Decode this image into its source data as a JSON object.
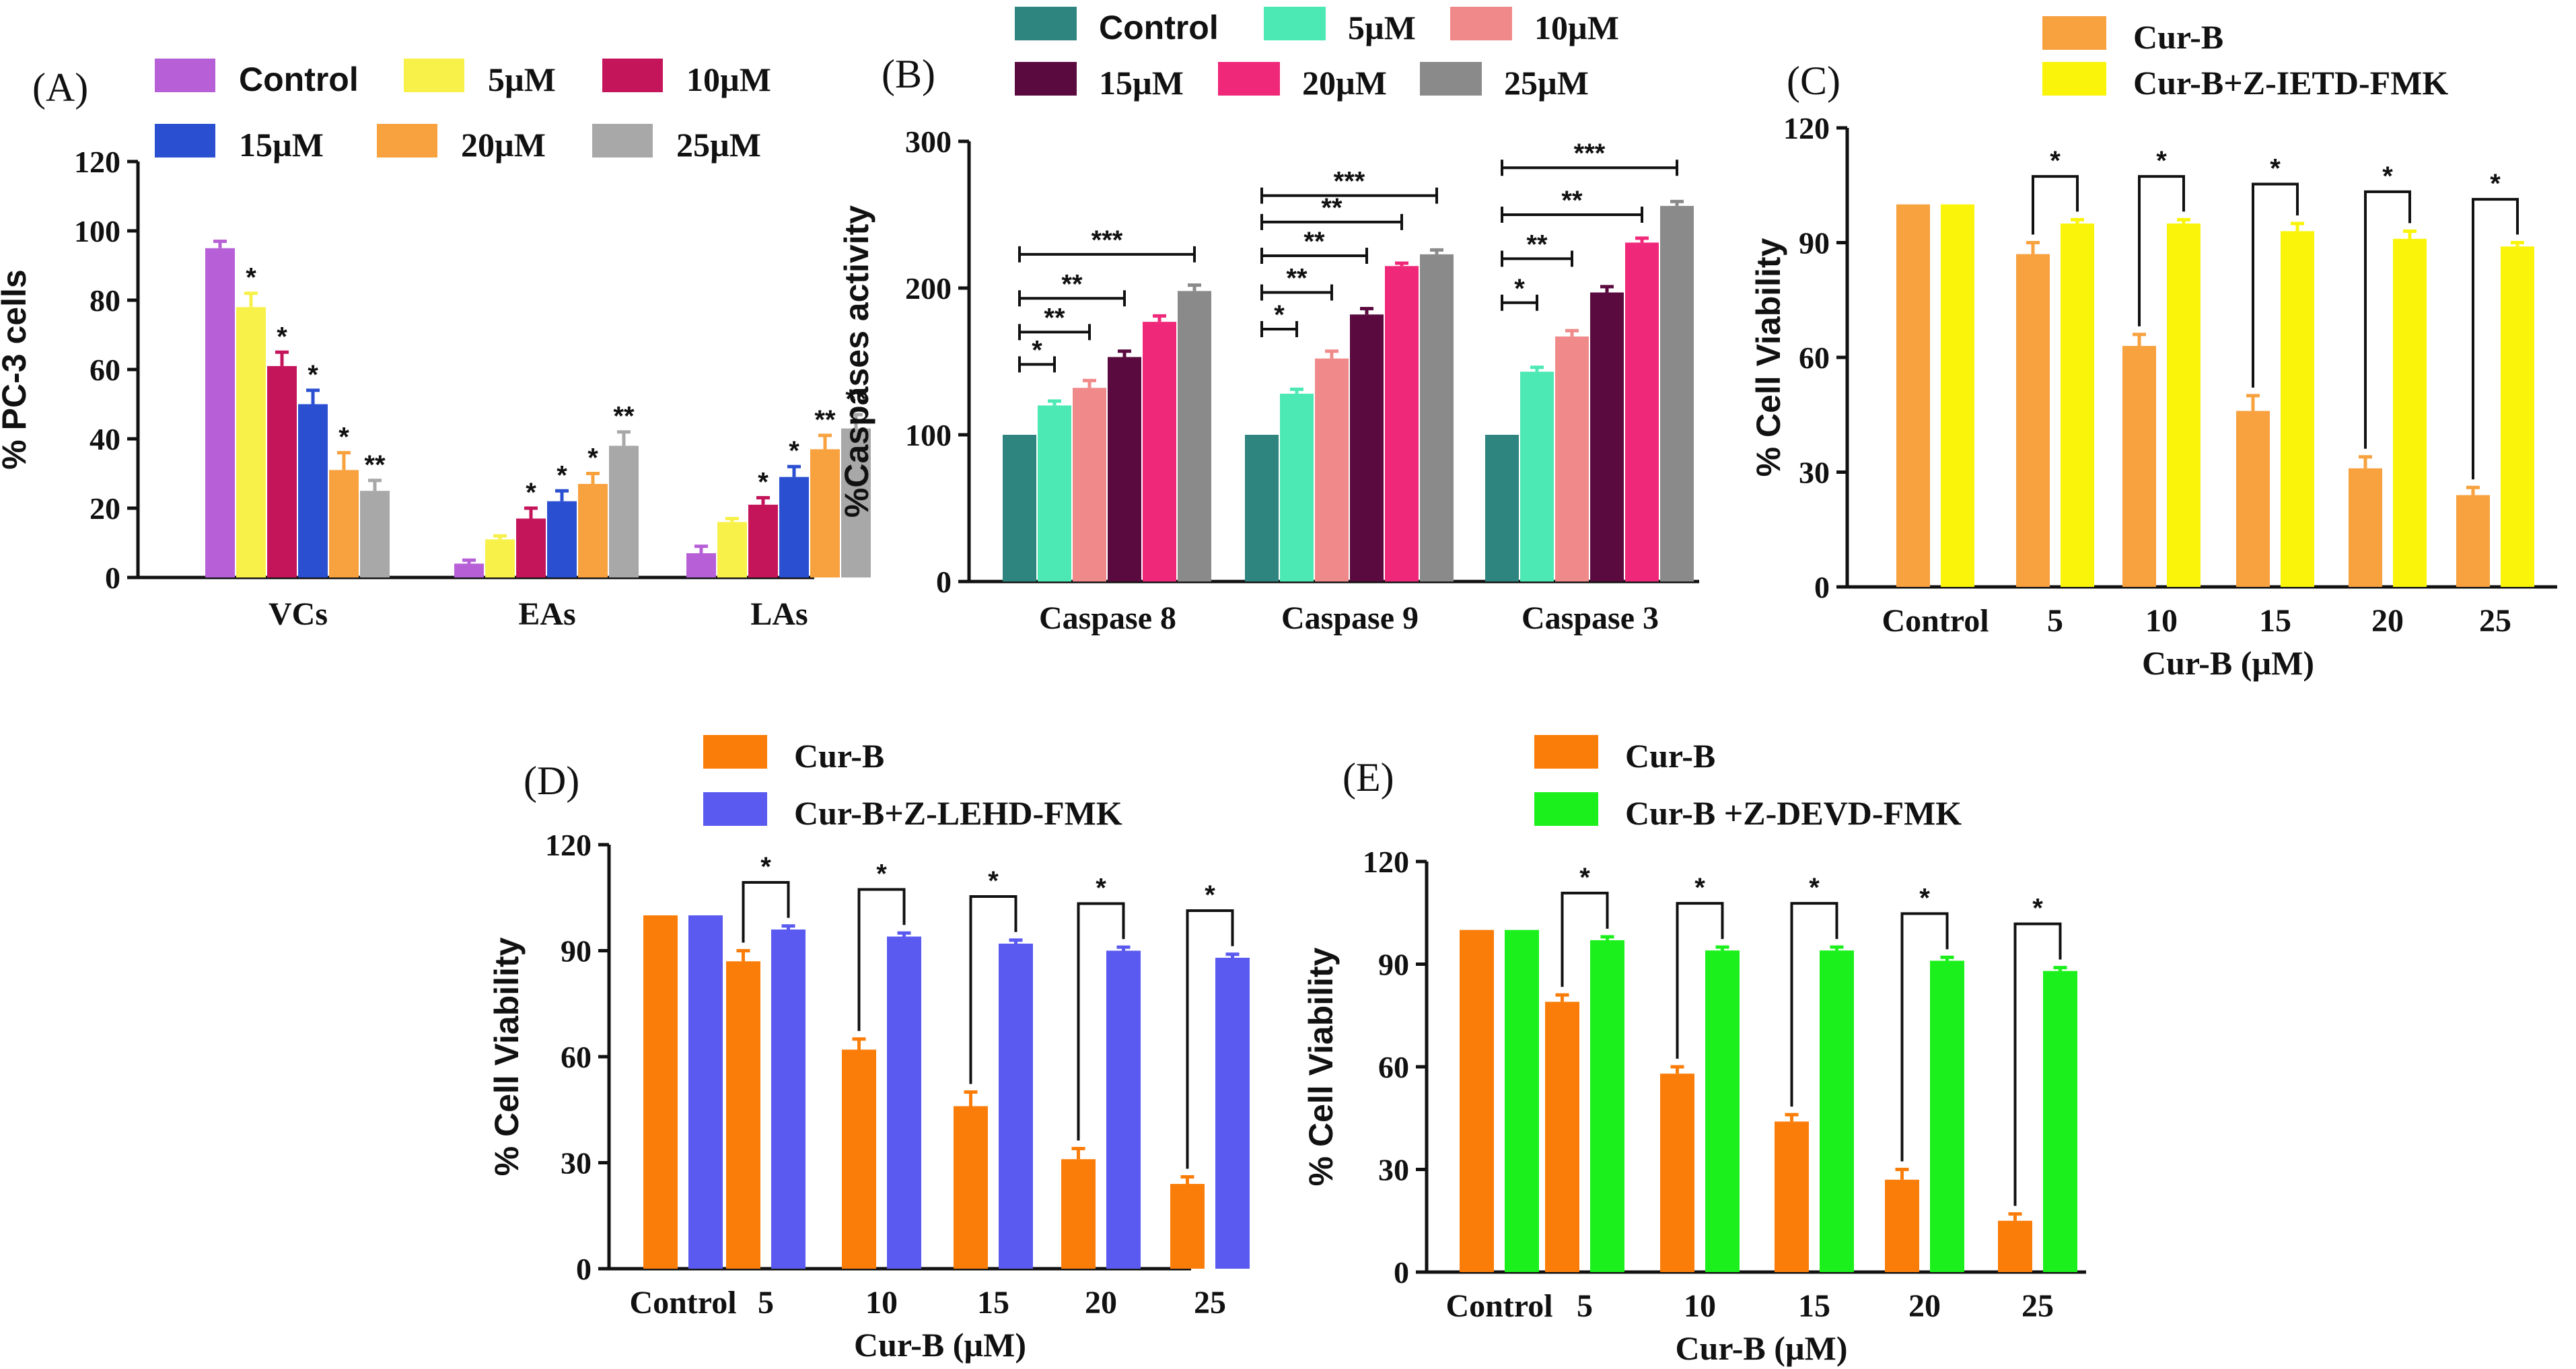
{
  "chart_data": [
    {
      "id": "A",
      "letter": "(A)",
      "type": "bar",
      "title": "",
      "xlabel": "",
      "ylabel": "% PC-3 cells",
      "ylim": [
        0,
        120
      ],
      "yticks": [
        0,
        20,
        40,
        60,
        80,
        100,
        120
      ],
      "categories": [
        "VCs",
        "EAs",
        "LAs"
      ],
      "legend": [
        "Control",
        "5µM",
        "10µM",
        "15µM",
        "20µM",
        "25µM"
      ],
      "colors": [
        "#b65fd6",
        "#f7f14a",
        "#c4145a",
        "#2a4fd0",
        "#f7a13f",
        "#a8a8a8"
      ],
      "series": [
        {
          "name": "Control",
          "values": [
            95,
            4,
            7
          ],
          "errors": [
            2,
            1,
            2
          ],
          "stars": [
            "",
            "",
            ""
          ]
        },
        {
          "name": "5µM",
          "values": [
            78,
            11,
            16
          ],
          "errors": [
            4,
            1,
            1
          ],
          "stars": [
            "*",
            "",
            ""
          ]
        },
        {
          "name": "10µM",
          "values": [
            61,
            17,
            21
          ],
          "errors": [
            4,
            3,
            2
          ],
          "stars": [
            "*",
            "*",
            "*"
          ]
        },
        {
          "name": "15µM",
          "values": [
            50,
            22,
            29
          ],
          "errors": [
            4,
            3,
            3
          ],
          "stars": [
            "*",
            "*",
            "*"
          ]
        },
        {
          "name": "20µM",
          "values": [
            31,
            27,
            37
          ],
          "errors": [
            5,
            3,
            4
          ],
          "stars": [
            "*",
            "*",
            "**"
          ]
        },
        {
          "name": "25µM",
          "values": [
            25,
            38,
            43
          ],
          "errors": [
            3,
            4,
            4
          ],
          "stars": [
            "**",
            "**",
            "**"
          ]
        }
      ]
    },
    {
      "id": "B",
      "letter": "(B)",
      "type": "bar",
      "title": "",
      "xlabel": "",
      "ylabel": "%Caspases activity",
      "ylim": [
        0,
        300
      ],
      "yticks": [
        0,
        100,
        200,
        300
      ],
      "categories": [
        "Caspase 8",
        "Caspase 9",
        "Caspase 3"
      ],
      "legend": [
        "Control",
        "5µM",
        "10µM",
        "15µM",
        "20µM",
        "25µM"
      ],
      "colors": [
        "#2e847e",
        "#4de9b5",
        "#f08a8a",
        "#5a0a3e",
        "#f0287a",
        "#8a8a8a"
      ],
      "series": [
        {
          "name": "Control",
          "values": [
            100,
            100,
            100
          ],
          "errors": [
            0,
            0,
            0
          ]
        },
        {
          "name": "5µM",
          "values": [
            120,
            128,
            143
          ],
          "errors": [
            3,
            3,
            3
          ]
        },
        {
          "name": "10µM",
          "values": [
            132,
            152,
            167
          ],
          "errors": [
            5,
            5,
            4
          ]
        },
        {
          "name": "15µM",
          "values": [
            153,
            182,
            197
          ],
          "errors": [
            4,
            4,
            4
          ]
        },
        {
          "name": "20µM",
          "values": [
            177,
            215,
            231
          ],
          "errors": [
            4,
            2,
            3
          ]
        },
        {
          "name": "25µM",
          "values": [
            198,
            223,
            256
          ],
          "errors": [
            4,
            3,
            3
          ]
        }
      ],
      "brackets": [
        {
          "group": 0,
          "to": 1,
          "level": 148,
          "label": "*"
        },
        {
          "group": 0,
          "to": 2,
          "level": 170,
          "label": "**"
        },
        {
          "group": 0,
          "to": 3,
          "level": 193,
          "label": "**"
        },
        {
          "group": 0,
          "to": 5,
          "level": 223,
          "label": "***"
        },
        {
          "group": 1,
          "to": 1,
          "level": 172,
          "label": "*"
        },
        {
          "group": 1,
          "to": 2,
          "level": 197,
          "label": "**"
        },
        {
          "group": 1,
          "to": 3,
          "level": 222,
          "label": "**"
        },
        {
          "group": 1,
          "to": 4,
          "level": 245,
          "label": "**"
        },
        {
          "group": 1,
          "to": 5,
          "level": 263,
          "label": "***"
        },
        {
          "group": 2,
          "to": 1,
          "level": 190,
          "label": "*"
        },
        {
          "group": 2,
          "to": 2,
          "level": 220,
          "label": "**"
        },
        {
          "group": 2,
          "to": 4,
          "level": 250,
          "label": "**"
        },
        {
          "group": 2,
          "to": 5,
          "level": 282,
          "label": "***"
        }
      ]
    },
    {
      "id": "C",
      "letter": "(C)",
      "type": "bar",
      "title": "",
      "xlabel": "Cur-B (µM)",
      "ylabel": "% Cell Viability",
      "ylim": [
        0,
        120
      ],
      "yticks": [
        0,
        30,
        60,
        90,
        120
      ],
      "categories": [
        "Control",
        "5",
        "10",
        "15",
        "20",
        "25"
      ],
      "legend": [
        "Cur-B",
        "Cur-B+Z-IETD-FMK"
      ],
      "colors": [
        "#f7a13f",
        "#f9f40a"
      ],
      "series": [
        {
          "name": "Cur-B",
          "values": [
            100,
            87,
            63,
            46,
            31,
            24
          ],
          "errors": [
            0,
            3,
            3,
            4,
            3,
            2
          ]
        },
        {
          "name": "Cur-B+Z-IETD-FMK",
          "values": [
            100,
            95,
            95,
            93,
            91,
            89
          ],
          "errors": [
            0,
            1,
            1,
            2,
            2,
            1
          ]
        }
      ],
      "pair_stars": [
        "",
        "*",
        "*",
        "*",
        "*",
        "*"
      ]
    },
    {
      "id": "D",
      "letter": "(D)",
      "type": "bar",
      "title": "",
      "xlabel": "Cur-B (µM)",
      "ylabel": "% Cell Viability",
      "ylim": [
        0,
        120
      ],
      "yticks": [
        0,
        30,
        60,
        90,
        120
      ],
      "categories": [
        "Control",
        "5",
        "10",
        "15",
        "20",
        "25"
      ],
      "legend": [
        "Cur-B",
        "Cur-B+Z-LEHD-FMK"
      ],
      "colors": [
        "#fb7d09",
        "#5a5af0"
      ],
      "series": [
        {
          "name": "Cur-B",
          "values": [
            100,
            87,
            62,
            46,
            31,
            24
          ],
          "errors": [
            0,
            3,
            3,
            4,
            3,
            2
          ]
        },
        {
          "name": "Cur-B+Z-LEHD-FMK",
          "values": [
            100,
            96,
            94,
            92,
            90,
            88
          ],
          "errors": [
            0,
            1,
            1,
            1,
            1,
            1
          ]
        }
      ],
      "pair_stars": [
        "",
        "*",
        "*",
        "*",
        "*",
        "*"
      ]
    },
    {
      "id": "E",
      "letter": "(E)",
      "type": "bar",
      "title": "",
      "xlabel": "Cur-B (µM)",
      "ylabel": "% Cell Viability",
      "ylim": [
        0,
        120
      ],
      "yticks": [
        0,
        30,
        60,
        90,
        120
      ],
      "categories": [
        "Control",
        "5",
        "10",
        "15",
        "20",
        "25"
      ],
      "legend": [
        "Cur-B",
        "Cur-B +Z-DEVD-FMK"
      ],
      "colors": [
        "#fb7d09",
        "#1cf01c"
      ],
      "series": [
        {
          "name": "Cur-B",
          "values": [
            100,
            79,
            58,
            44,
            27,
            15
          ],
          "errors": [
            0,
            2,
            2,
            2,
            3,
            2
          ]
        },
        {
          "name": "Cur-B +Z-DEVD-FMK",
          "values": [
            100,
            97,
            94,
            94,
            91,
            88
          ],
          "errors": [
            0,
            1,
            1,
            1,
            1,
            1
          ]
        }
      ],
      "pair_stars": [
        "",
        "*",
        "*",
        "*",
        "*",
        "*"
      ]
    }
  ]
}
